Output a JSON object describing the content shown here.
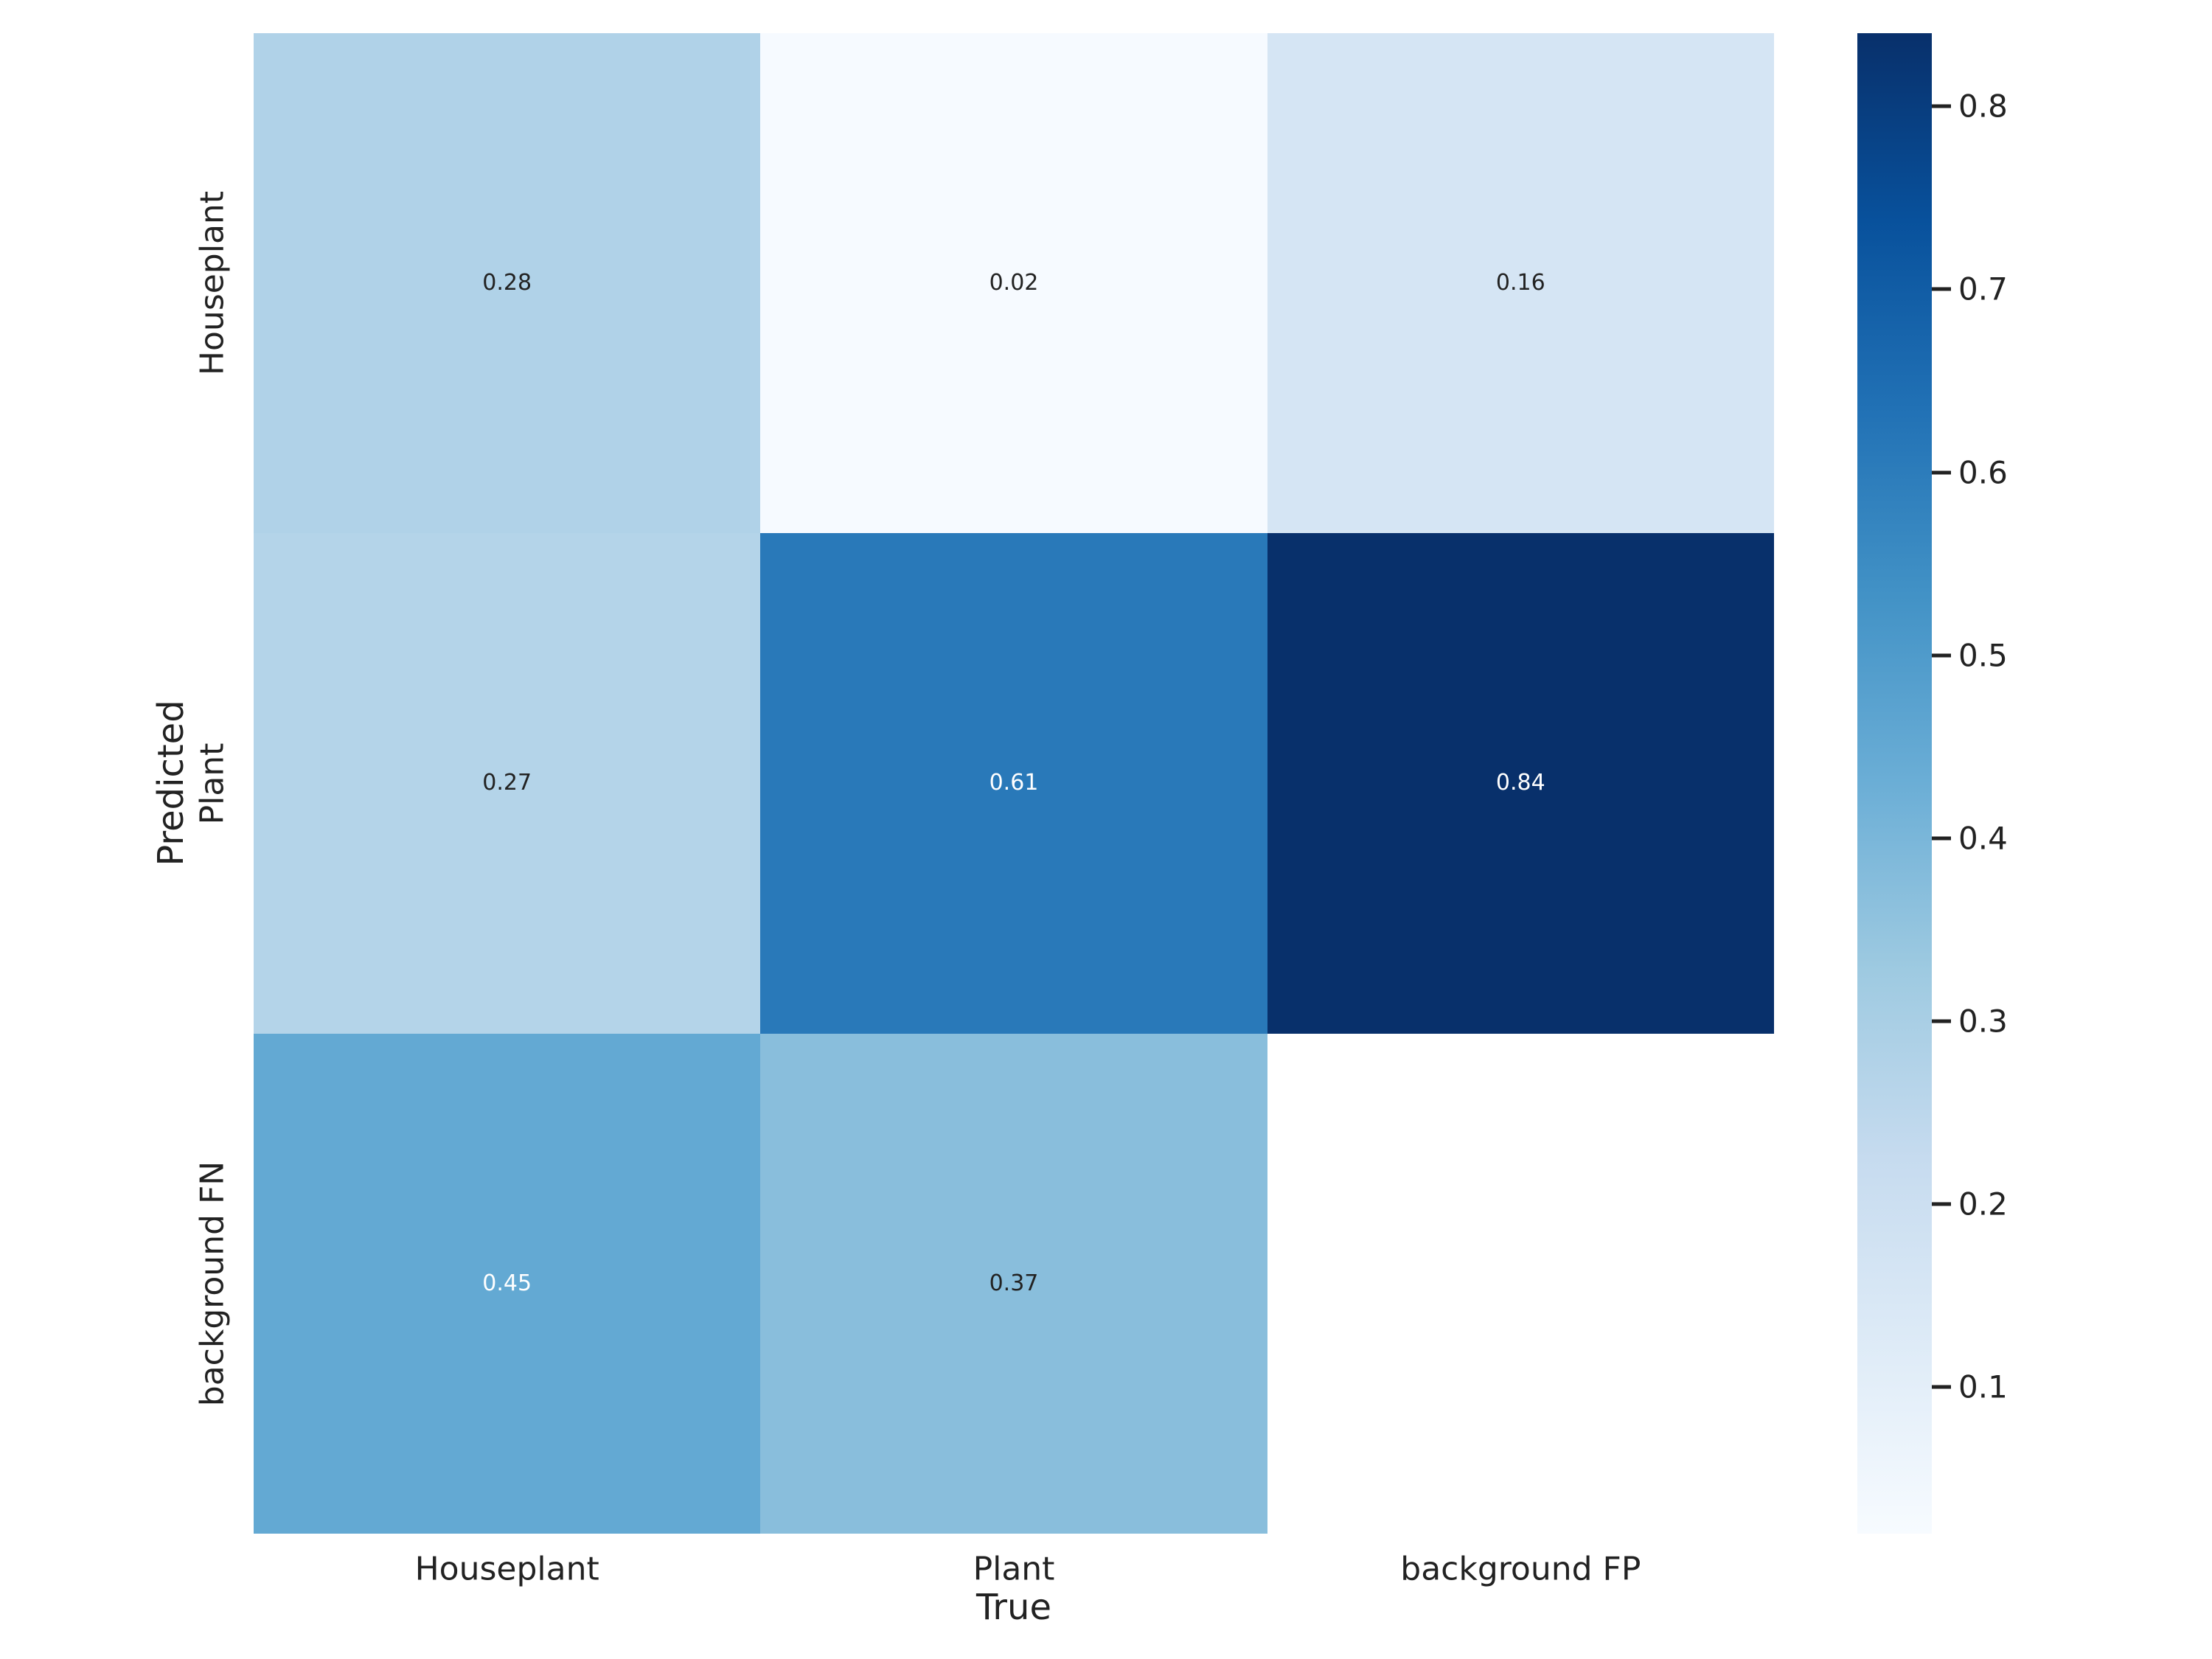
{
  "chart_data": {
    "type": "heatmap",
    "title": "",
    "colormap": "Blues",
    "xlabel": "True",
    "ylabel": "Predicted",
    "x_categories": [
      "Houseplant",
      "Plant",
      "background FP"
    ],
    "y_categories": [
      "Houseplant",
      "Plant",
      "background FN"
    ],
    "values": [
      [
        0.28,
        0.02,
        0.16
      ],
      [
        0.27,
        0.61,
        0.84
      ],
      [
        0.45,
        0.37,
        null
      ]
    ],
    "cell_labels": [
      [
        "0.28",
        "0.02",
        "0.16"
      ],
      [
        "0.27",
        "0.61",
        "0.84"
      ],
      [
        "0.45",
        "0.37",
        ""
      ]
    ],
    "cell_colors": [
      [
        "#b0d2e8",
        "#f6faff",
        "#d5e5f4"
      ],
      [
        "#b4d4e9",
        "#2979b9",
        "#08306b"
      ],
      [
        "#63a9d3",
        "#89bedc",
        "#ffffff"
      ]
    ],
    "cell_text_colors": [
      [
        "#222222",
        "#222222",
        "#222222"
      ],
      [
        "#222222",
        "#ffffff",
        "#ffffff"
      ],
      [
        "#ffffff",
        "#222222",
        "#222222"
      ]
    ],
    "masked_cells": [
      [
        2,
        2
      ]
    ],
    "vmin": 0.02,
    "vmax": 0.84,
    "grid": false,
    "colorbar": {
      "position": "right",
      "ticks": [
        0.8,
        0.7,
        0.6,
        0.5,
        0.4,
        0.3,
        0.2,
        0.1
      ],
      "tick_labels": [
        "0.8",
        "0.7",
        "0.6",
        "0.5",
        "0.4",
        "0.3",
        "0.2",
        "0.1"
      ],
      "gradient_stops_bottom_to_top": [
        "#f7fbff",
        "#deebf7",
        "#c6dbef",
        "#9ecae1",
        "#6baed6",
        "#4292c6",
        "#2171b5",
        "#08519c",
        "#08306b"
      ]
    }
  }
}
